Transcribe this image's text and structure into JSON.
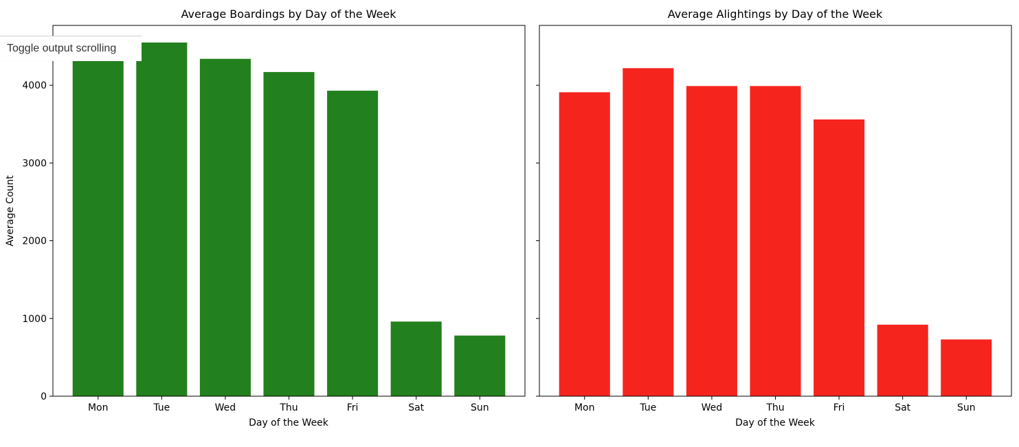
{
  "tooltip": {
    "text": "Toggle output scrolling"
  },
  "colors": {
    "boardings": "#23801e",
    "alightings": "#f5251e",
    "axis": "#000000",
    "text": "#000000"
  },
  "chart_data": [
    {
      "type": "bar",
      "title": "Average Boardings by Day of the Week",
      "xlabel": "Day of the Week",
      "ylabel": "Average Count",
      "categories": [
        "Mon",
        "Tue",
        "Wed",
        "Thu",
        "Fri",
        "Sat",
        "Sun"
      ],
      "values": [
        4350,
        4550,
        4340,
        4170,
        3930,
        960,
        780
      ],
      "ylim": [
        0,
        4770
      ],
      "yticks": [
        0,
        1000,
        2000,
        3000,
        4000
      ],
      "show_ytick_labels": true,
      "grid": false,
      "color": "#23801e"
    },
    {
      "type": "bar",
      "title": "Average Alightings by Day of the Week",
      "xlabel": "Day of the Week",
      "ylabel": "",
      "categories": [
        "Mon",
        "Tue",
        "Wed",
        "Thu",
        "Fri",
        "Sat",
        "Sun"
      ],
      "values": [
        3910,
        4220,
        3990,
        3990,
        3560,
        920,
        730
      ],
      "ylim": [
        0,
        4770
      ],
      "yticks": [
        0,
        1000,
        2000,
        3000,
        4000
      ],
      "show_ytick_labels": false,
      "grid": false,
      "color": "#f5251e"
    }
  ]
}
